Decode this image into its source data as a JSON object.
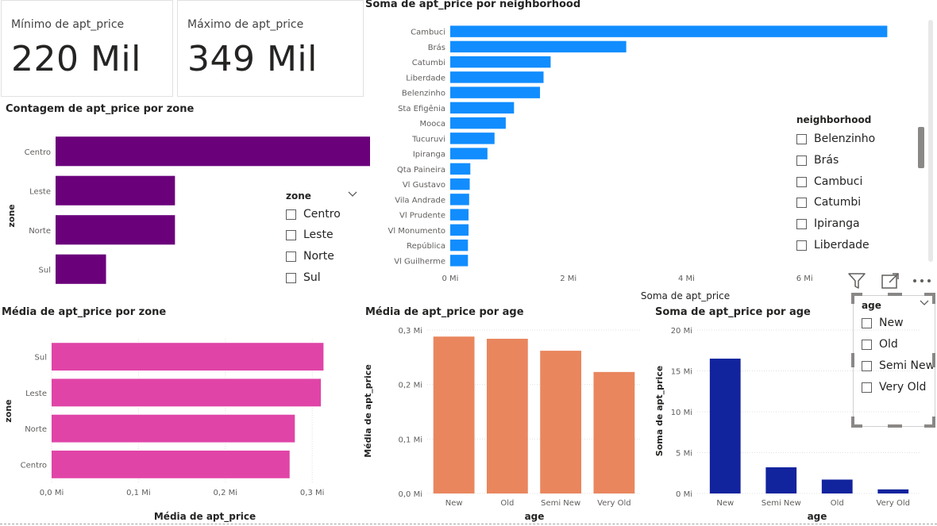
{
  "cards": [
    {
      "title": "Mínimo de apt_price",
      "value": "220 Mil"
    },
    {
      "title": "Máximo de apt_price",
      "value": "349 Mil"
    }
  ],
  "zone_slicer": {
    "header": "zone",
    "items": [
      "Centro",
      "Leste",
      "Norte",
      "Sul"
    ]
  },
  "neighborhood_slicer": {
    "header": "neighborhood",
    "items": [
      "Belenzinho",
      "Brás",
      "Cambuci",
      "Catumbi",
      "Ipiranga",
      "Liberdade"
    ]
  },
  "age_slicer": {
    "header": "age",
    "items": [
      "New",
      "Old",
      "Semi New",
      "Very Old"
    ]
  },
  "colors": {
    "neighborhood": "#118dff",
    "zone_count": "#6b007b",
    "zone_avg": "#e044a7",
    "age_avg": "#e9865e",
    "age_sum": "#12239e"
  },
  "chart_data": [
    {
      "type": "bar",
      "orientation": "horizontal",
      "title": "Contagem de apt_price por zone",
      "ylabel": "zone",
      "xlabel": "",
      "categories": [
        "Centro",
        "Leste",
        "Norte",
        "Sul"
      ],
      "values": [
        18.7,
        7.1,
        7.1,
        3.0
      ],
      "xlim": [
        0,
        18.7
      ]
    },
    {
      "type": "bar",
      "orientation": "horizontal",
      "title": "Soma de apt_price por neighborhood",
      "xlabel": "Soma de apt_price",
      "ylabel": "",
      "categories": [
        "Cambuci",
        "Brás",
        "Catumbi",
        "Liberdade",
        "Belenzinho",
        "Sta Efigênia",
        "Mooca",
        "Tucuruvi",
        "Ipiranga",
        "Qta Paineira",
        "Vl Gustavo",
        "Vila Andrade",
        "Vl Prudente",
        "Vl Monumento",
        "República",
        "Vl Guilherme"
      ],
      "values": [
        7.4,
        2.98,
        1.7,
        1.58,
        1.52,
        1.08,
        0.94,
        0.75,
        0.63,
        0.34,
        0.33,
        0.32,
        0.31,
        0.31,
        0.3,
        0.3
      ],
      "xticks": [
        "0 Mi",
        "2 Mi",
        "4 Mi",
        "6 Mi"
      ],
      "xlim": [
        0,
        8
      ]
    },
    {
      "type": "bar",
      "orientation": "horizontal",
      "title": "Média de apt_price por zone",
      "xlabel": "Média de apt_price",
      "ylabel": "zone",
      "categories": [
        "Sul",
        "Leste",
        "Norte",
        "Centro"
      ],
      "values": [
        0.313,
        0.31,
        0.28,
        0.274
      ],
      "xticks": [
        "0,0 Mi",
        "0,1 Mi",
        "0,2 Mi",
        "0,3 Mi"
      ],
      "xlim": [
        0,
        0.33
      ]
    },
    {
      "type": "bar",
      "title": "Média de apt_price por age",
      "xlabel": "age",
      "ylabel": "Média de apt_price",
      "categories": [
        "New",
        "Old",
        "Semi New",
        "Very Old"
      ],
      "values": [
        0.288,
        0.284,
        0.262,
        0.223
      ],
      "yticks": [
        "0,0 Mi",
        "0,1 Mi",
        "0,2 Mi",
        "0,3 Mi"
      ],
      "ylim": [
        0,
        0.3
      ]
    },
    {
      "type": "bar",
      "title": "Soma de apt_price por age",
      "xlabel": "age",
      "ylabel": "Soma de apt_price",
      "categories": [
        "New",
        "Semi New",
        "Old",
        "Very Old"
      ],
      "values": [
        16.5,
        3.2,
        1.7,
        0.5
      ],
      "yticks": [
        "0 Mi",
        "5 Mi",
        "10 Mi",
        "15 Mi",
        "20 Mi"
      ],
      "ylim": [
        0,
        20
      ]
    }
  ]
}
